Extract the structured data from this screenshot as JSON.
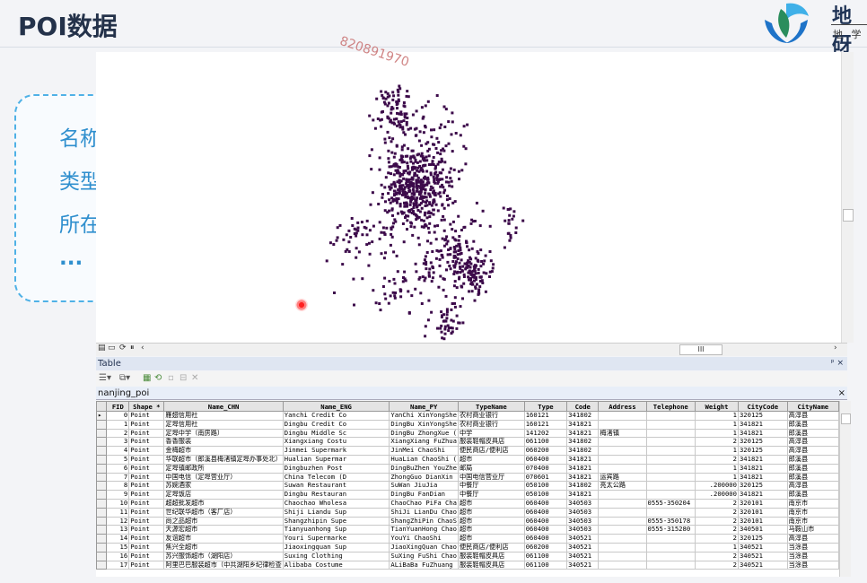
{
  "slide": {
    "title": "POI数据"
  },
  "logo": {
    "text": "地 砑",
    "sub": "地 学"
  },
  "callout": {
    "items": [
      "名称",
      "类型",
      "所在地",
      "..."
    ]
  },
  "watermark": "820891970",
  "map_toolbar": {
    "scroll_label": "III"
  },
  "table_window": {
    "title": "Table",
    "pin": "ᵖ ×",
    "tab": "nanjing_poi",
    "tab_close": "×"
  },
  "table": {
    "columns": [
      "FID",
      "Shape *",
      "Name_CHN",
      "Name_ENG",
      "Name_PY",
      "TypeName",
      "Type",
      "Code",
      "Address",
      "Telephone",
      "Weight",
      "CityCode",
      "CityName"
    ],
    "rows": [
      [
        "0",
        "Point",
        "雁翅信用社",
        "Yanchi Credit Co",
        "YanChi XinYongShe",
        "农村商业银行",
        "160121",
        "341802",
        "",
        "",
        "1",
        "320125",
        "高淳县"
      ],
      [
        "1",
        "Point",
        "定埠信用社",
        "Dingbu Credit Co",
        "DingBu XinYongShe",
        "农村商业银行",
        "160121",
        "341821",
        "",
        "",
        "1",
        "341821",
        "郎溪县"
      ],
      [
        "2",
        "Point",
        "定埠中学（南房路）",
        "Dingbu Middle Sc",
        "DingBu ZhongXue (",
        "中学",
        "141202",
        "341821",
        "梅渚镇",
        "",
        "1",
        "341821",
        "郎溪县"
      ],
      [
        "3",
        "Point",
        "香香服装",
        "Xiangxiang Costu",
        "XiangXiang FuZhua",
        "服装鞋帽皮具店",
        "061100",
        "341802",
        "",
        "",
        "2",
        "320125",
        "高淳县"
      ],
      [
        "4",
        "Point",
        "金梅超市",
        "Jinmei Supermark",
        "JinMei ChaoShi",
        "便民商店/便利店",
        "060200",
        "341802",
        "",
        "",
        "1",
        "320125",
        "高淳县"
      ],
      [
        "5",
        "Point",
        "华联超市（郎溪县梅渚镇定埠办事处北）",
        "Hualian Supermar",
        "HuaLian ChaoShi (",
        "超市",
        "060400",
        "341821",
        "",
        "",
        "2",
        "341821",
        "郎溪县"
      ],
      [
        "6",
        "Point",
        "定埠镇邮政所",
        "Dingbuzhen Post",
        "DingBuZhen YouZhe",
        "邮局",
        "070400",
        "341821",
        "",
        "",
        "1",
        "341821",
        "郎溪县"
      ],
      [
        "7",
        "Point",
        "中国电信（定埠营业厅）",
        "China Telecom (D",
        "ZhongGuo DianXin",
        "中国电信营业厅",
        "070601",
        "341821",
        "运宾路",
        "",
        "1",
        "341821",
        "郎溪县"
      ],
      [
        "8",
        "Point",
        "苏婉酒家",
        "Suwan Restaurant",
        "SuWan JiuJia",
        "中餐厅",
        "050100",
        "341802",
        "亮太公路",
        "",
        ".200000",
        "320125",
        "高淳县"
      ],
      [
        "9",
        "Point",
        "定埠饭店",
        "Dingbu Restauran",
        "DingBu FanDian",
        "中餐厅",
        "050100",
        "341821",
        "",
        "",
        ".200000",
        "341821",
        "郎溪县"
      ],
      [
        "10",
        "Point",
        "超超批发超市",
        "Chaochao Wholesa",
        "ChaoChao PiFa Cha",
        "超市",
        "060400",
        "340503",
        "",
        "0555-350204",
        "2",
        "320101",
        "南京市"
      ],
      [
        "11",
        "Point",
        "世纪联华超市（客厂店）",
        "Shiji Liandu Sup",
        "ShiJi LianDu Chao",
        "超市",
        "060400",
        "340503",
        "",
        "",
        "2",
        "320101",
        "南京市"
      ],
      [
        "12",
        "Point",
        "尚之品超市",
        "Shangzhipin Supe",
        "ShangZhiPin ChaoS",
        "超市",
        "060400",
        "340503",
        "",
        "0555-350178",
        "2",
        "320101",
        "南京市"
      ],
      [
        "13",
        "Point",
        "天源宏超市",
        "Tianyuanhong Sup",
        "TianYuanHong Chao",
        "超市",
        "060400",
        "340503",
        "",
        "0555-315280",
        "2",
        "340501",
        "马鞍山市"
      ],
      [
        "14",
        "Point",
        "友谊超市",
        "Youri Supermarke",
        "YouYi ChaoShi",
        "超市",
        "060400",
        "340521",
        "",
        "",
        "2",
        "320125",
        "高淳县"
      ],
      [
        "15",
        "Point",
        "焦兴全超市",
        "Jiaoxingquan Sup",
        "JiaoXingQuan Chao",
        "便民商店/便利店",
        "060200",
        "340521",
        "",
        "",
        "1",
        "340521",
        "当涂县"
      ],
      [
        "16",
        "Point",
        "苏兴服饰超市（湖阳店）",
        "Suxing Clothing",
        "SuXing FuShi Chao",
        "服装鞋帽皮具店",
        "061100",
        "340521",
        "",
        "",
        "2",
        "340521",
        "当涂县"
      ],
      [
        "17",
        "Point",
        "阿里巴巴服装超市（中共湖阳乡纪律检查",
        "Alibaba Costume",
        "ALiBaBa FuZhuang",
        "服装鞋帽皮具店",
        "061100",
        "340521",
        "",
        "",
        "2",
        "340521",
        "当涂县"
      ]
    ]
  },
  "colors": {
    "points": "#3c0a4a",
    "accent": "#2f8fce",
    "title": "#24324a"
  }
}
